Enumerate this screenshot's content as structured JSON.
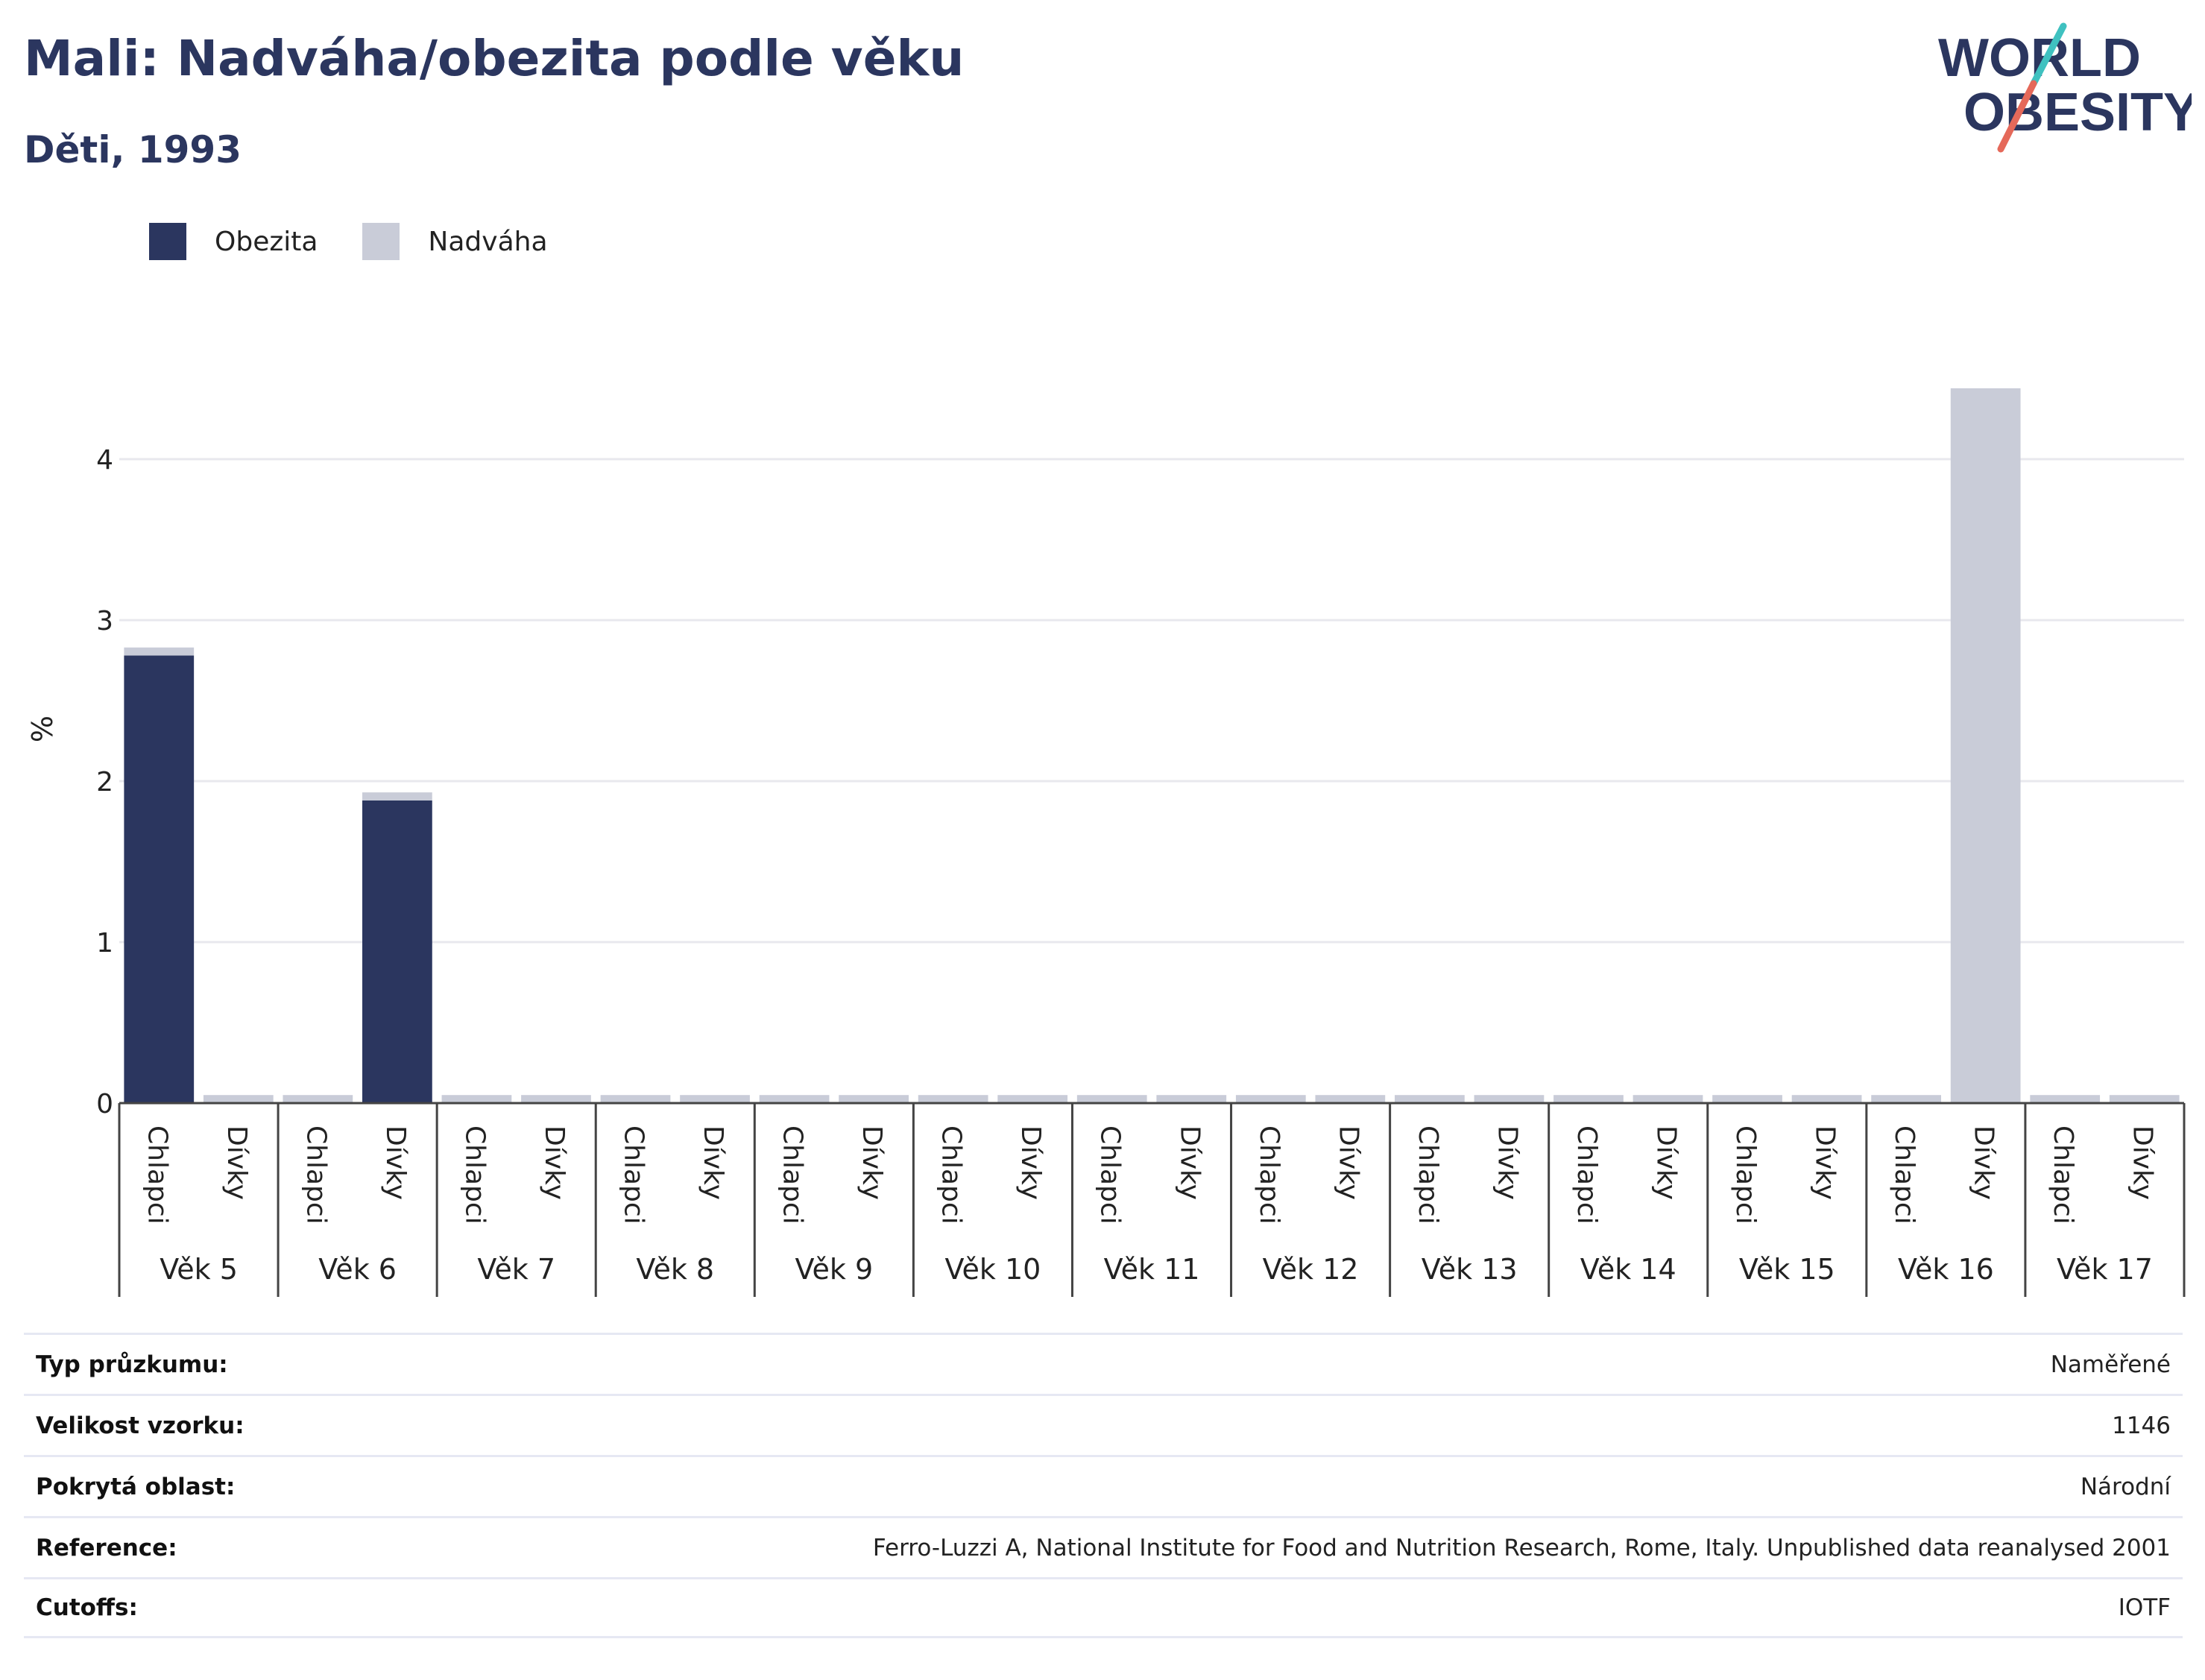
{
  "title": "Mali: Nadváha/obezita podle věku",
  "subtitle": "Děti, 1993",
  "logo": {
    "line1": "WORLD",
    "line2": "OBESITY"
  },
  "legend": [
    {
      "label": "Obezita",
      "color": "#2b365f"
    },
    {
      "label": "Nadváha",
      "color": "#c9ccd8"
    }
  ],
  "chart_data": {
    "type": "bar",
    "stacked": true,
    "ylabel": "%",
    "ylim": [
      0,
      4.6
    ],
    "yticks": [
      0,
      1,
      2,
      3,
      4
    ],
    "grid": true,
    "legend_position": "top-left",
    "groups": [
      "Věk 5",
      "Věk 6",
      "Věk 7",
      "Věk 8",
      "Věk 9",
      "Věk 10",
      "Věk 11",
      "Věk 12",
      "Věk 13",
      "Věk 14",
      "Věk 15",
      "Věk 16",
      "Věk 17"
    ],
    "subcategories": [
      "Chlapci",
      "Dívky"
    ],
    "series": [
      {
        "name": "Obezita",
        "color": "#2b365f",
        "values": [
          2.78,
          0,
          0,
          1.88,
          0,
          0,
          0,
          0,
          0,
          0,
          0,
          0,
          0,
          0,
          0,
          0,
          0,
          0,
          0,
          0,
          0,
          0,
          0,
          0,
          0,
          0
        ]
      },
      {
        "name": "Nadváha",
        "color": "#c9ccd8",
        "values": [
          0.05,
          0,
          0,
          0.05,
          0,
          0,
          0,
          0,
          0,
          0,
          0,
          0,
          0,
          0,
          0,
          0,
          0,
          0,
          0,
          0,
          0,
          0,
          0,
          4.44,
          0,
          0
        ]
      }
    ]
  },
  "info": [
    {
      "label": "Typ průzkumu:",
      "value": "Naměřené"
    },
    {
      "label": "Velikost vzorku:",
      "value": "1146"
    },
    {
      "label": "Pokrytá oblast:",
      "value": "Národní"
    },
    {
      "label": "Reference:",
      "value": "Ferro-Luzzi A, National Institute for Food and Nutrition Research, Rome, Italy. Unpublished data reanalysed 2001"
    },
    {
      "label": "Cutoffs:",
      "value": "IOTF"
    }
  ]
}
